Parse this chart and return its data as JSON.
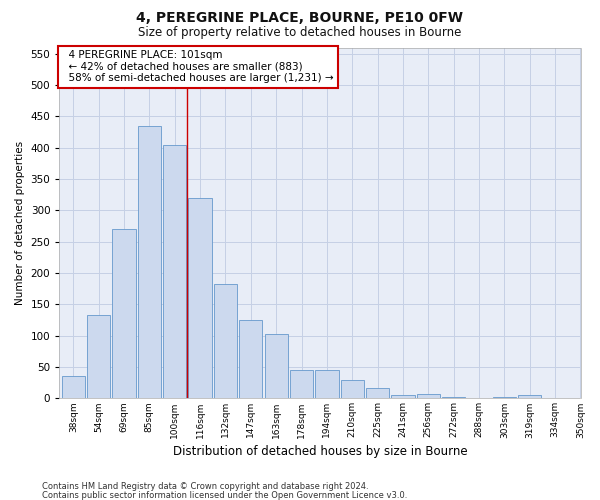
{
  "title1": "4, PEREGRINE PLACE, BOURNE, PE10 0FW",
  "title2": "Size of property relative to detached houses in Bourne",
  "xlabel": "Distribution of detached houses by size in Bourne",
  "ylabel": "Number of detached properties",
  "bar_labels": [
    "38sqm",
    "54sqm",
    "69sqm",
    "85sqm",
    "100sqm",
    "116sqm",
    "132sqm",
    "147sqm",
    "163sqm",
    "178sqm",
    "194sqm",
    "210sqm",
    "225sqm",
    "241sqm",
    "256sqm",
    "272sqm",
    "288sqm",
    "303sqm",
    "319sqm",
    "334sqm",
    "350sqm"
  ],
  "bar_values": [
    35,
    133,
    270,
    435,
    405,
    320,
    183,
    125,
    103,
    45,
    45,
    30,
    17,
    5,
    7,
    2,
    1,
    2,
    5,
    0
  ],
  "bar_color": "#ccd9ee",
  "bar_edge_color": "#6699cc",
  "vline_x": 4.5,
  "vline_color": "#cc0000",
  "ylim": [
    0,
    560
  ],
  "yticks": [
    0,
    50,
    100,
    150,
    200,
    250,
    300,
    350,
    400,
    450,
    500,
    550
  ],
  "grid_color": "#c5d0e5",
  "background_color": "#e8edf7",
  "annotation_title": "4 PEREGRINE PLACE: 101sqm",
  "annotation_line1": "← 42% of detached houses are smaller (883)",
  "annotation_line2": "58% of semi-detached houses are larger (1,231) →",
  "annotation_box_facecolor": "#ffffff",
  "annotation_box_edgecolor": "#cc0000",
  "footer1": "Contains HM Land Registry data © Crown copyright and database right 2024.",
  "footer2": "Contains public sector information licensed under the Open Government Licence v3.0."
}
